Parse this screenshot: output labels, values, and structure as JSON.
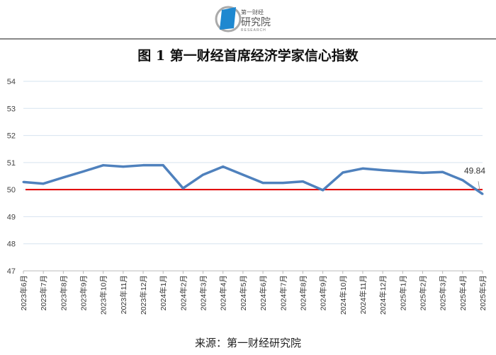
{
  "logo": {
    "line1": "第一财经",
    "line2": "研究院",
    "line3": "RESEARCH"
  },
  "chart_data": {
    "type": "line",
    "title": "图 1  第一财经首席经济学家信心指数",
    "categories": [
      "2023年6月",
      "2023年7月",
      "2023年8月",
      "2023年9月",
      "2023年10月",
      "2023年11月",
      "2023年12月",
      "2024年1月",
      "2024年2月",
      "2024年3月",
      "2024年4月",
      "2024年5月",
      "2024年6月",
      "2024年7月",
      "2024年8月",
      "2024年9月",
      "2024年10月",
      "2024年11月",
      "2024年12月",
      "2025年1月",
      "2025年2月",
      "2025年3月",
      "2025年4月",
      "2025年5月"
    ],
    "values": [
      50.28,
      50.22,
      50.45,
      50.67,
      50.9,
      50.85,
      50.9,
      50.9,
      50.05,
      50.55,
      50.85,
      50.55,
      50.25,
      50.25,
      50.3,
      49.98,
      50.63,
      50.78,
      50.72,
      50.67,
      50.62,
      50.65,
      50.35,
      49.84
    ],
    "ylim": [
      47,
      54
    ],
    "yticks": [
      "47",
      "48",
      "49",
      "50",
      "51",
      "52",
      "53",
      "54"
    ],
    "reference_line": 50,
    "data_label": "49.84",
    "grid": true,
    "colors": {
      "series": "#4f81bd",
      "reference": "#e00000",
      "grid": "#d6e3ef"
    }
  },
  "source": "来源：第一财经研究院"
}
